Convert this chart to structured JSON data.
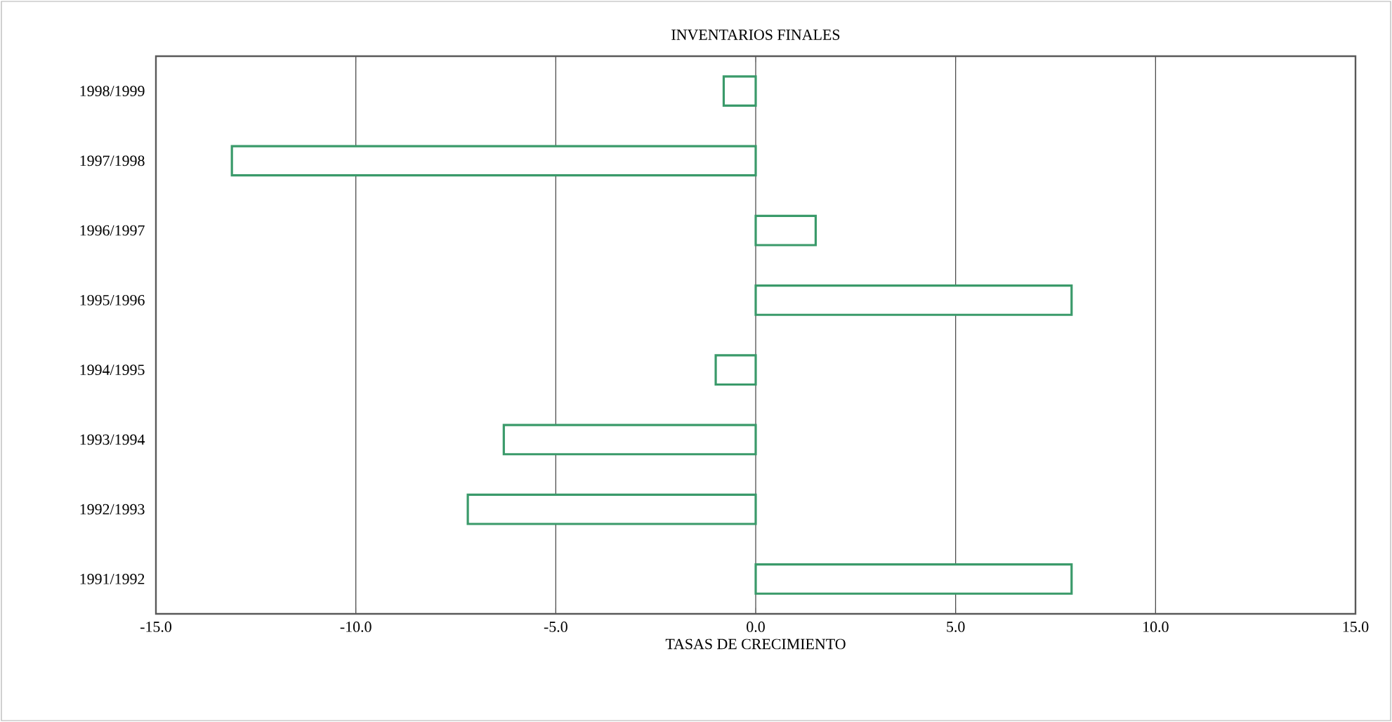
{
  "chart_data": {
    "type": "bar",
    "orientation": "horizontal",
    "title": "INVENTARIOS FINALES",
    "xlabel": "TASAS DE CRECIMIENTO",
    "categories": [
      "1998/1999",
      "1997/1998",
      "1996/1997",
      "1995/1996",
      "1994/1995",
      "1993/1994",
      "1992/1993",
      "1991/1992"
    ],
    "values": [
      -0.8,
      -13.1,
      1.5,
      7.9,
      -1.0,
      -6.3,
      -7.2,
      7.9
    ],
    "color": "#3a9a6a",
    "xlim": [
      -15,
      15
    ],
    "xticks": [
      {
        "value": -15,
        "label": "-15.0"
      },
      {
        "value": -10,
        "label": "-10.0"
      },
      {
        "value": -5,
        "label": "-5.0"
      },
      {
        "value": 0,
        "label": "0.0"
      },
      {
        "value": 5,
        "label": "5.0"
      },
      {
        "value": 10,
        "label": "10.0"
      },
      {
        "value": 15,
        "label": "15.0"
      }
    ],
    "grid": "x"
  }
}
